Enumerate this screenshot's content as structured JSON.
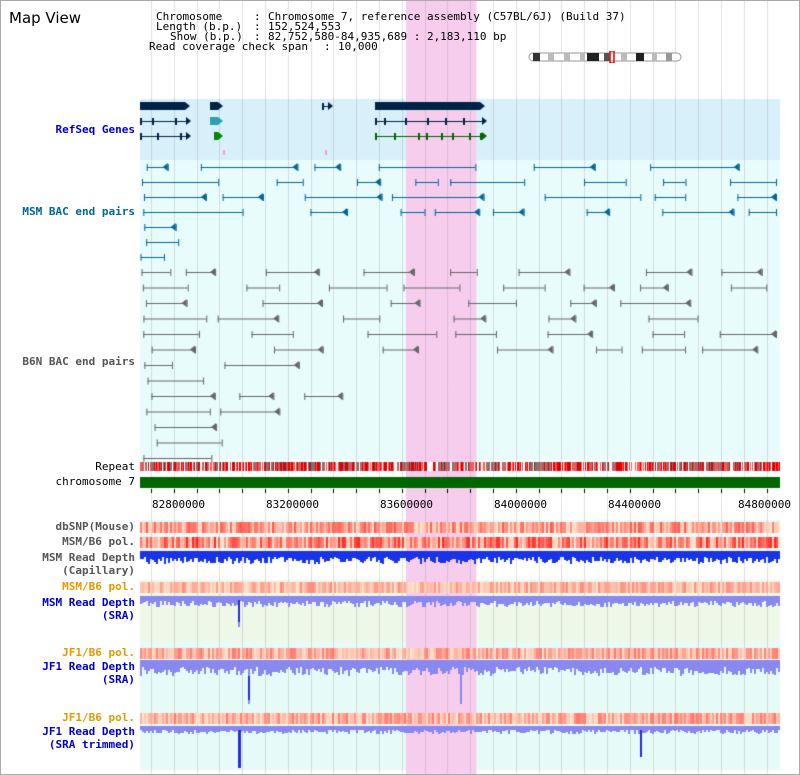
{
  "title": "Map View",
  "info": {
    "chromosome_key": "Chromosome",
    "chromosome_value": "Chromosome 7, reference assembly (C57BL/6J) (Build 37)",
    "length_key": "Length (b.p.)",
    "length_value": "152,524,553",
    "show_key": "Show (b.p.)",
    "show_value": "82,752,580-84,935,689 : 2,183,110 bp",
    "span_key": "Read coverage check span",
    "span_value": "10,000"
  },
  "view": {
    "start": 82752580,
    "end": 84935689
  },
  "highlight_region": {
    "start": 83660000,
    "end": 83900000
  },
  "tracks": {
    "refseq": "RefSeq Genes",
    "msm_bac": "MSM BAC end pairs",
    "b6n_bac": "B6N BAC end pairs",
    "repeat": "Repeat",
    "chromosome": "chromosome 7",
    "dbsnp": "dbSNP(Mouse)",
    "msm_b6_pol_1": "MSM/B6 pol.",
    "msm_depth_cap_1": "MSM Read Depth",
    "msm_depth_cap_2": "(Capillary)",
    "msm_b6_pol_2": "MSM/B6 pol.",
    "msm_depth_sra_1": "MSM Read Depth",
    "msm_depth_sra_2": "(SRA)",
    "jf1_b6_pol_1": "JF1/B6 pol.",
    "jf1_depth_sra_1": "JF1 Read Depth",
    "jf1_depth_sra_2": "(SRA)",
    "jf1_b6_pol_2": "JF1/B6 pol.",
    "jf1_depth_trim_1": "JF1 Read Depth",
    "jf1_depth_trim_2": "(SRA trimmed)"
  },
  "axis_ticks": [
    "82800000",
    "83200000",
    "83600000",
    "84000000",
    "84400000",
    "84800000"
  ],
  "colors": {
    "refseq_label": "#0000cc",
    "msm_label": "#006699",
    "b6n_label": "#555555",
    "pol_label": "#e69900",
    "depth_label": "#0000cc",
    "chromosome_bar": "#006600",
    "highlight": "#f7cdee",
    "capillary_depth": "#1a33e6",
    "sra_depth": "#8888ee"
  }
}
